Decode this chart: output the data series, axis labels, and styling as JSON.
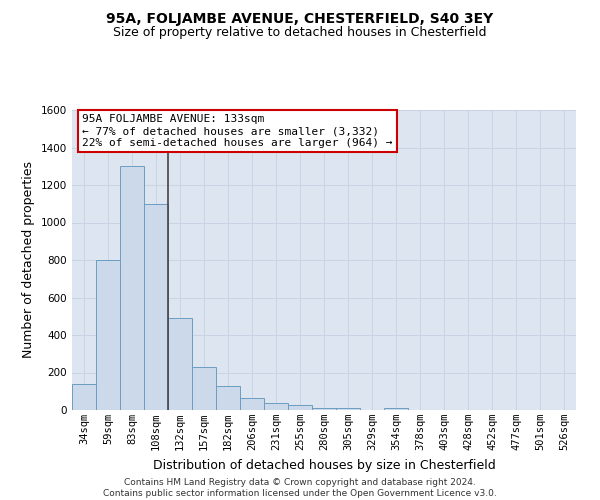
{
  "title": "95A, FOLJAMBE AVENUE, CHESTERFIELD, S40 3EY",
  "subtitle": "Size of property relative to detached houses in Chesterfield",
  "xlabel": "Distribution of detached houses by size in Chesterfield",
  "ylabel": "Number of detached properties",
  "footer_line1": "Contains HM Land Registry data © Crown copyright and database right 2024.",
  "footer_line2": "Contains public sector information licensed under the Open Government Licence v3.0.",
  "categories": [
    "34sqm",
    "59sqm",
    "83sqm",
    "108sqm",
    "132sqm",
    "157sqm",
    "182sqm",
    "206sqm",
    "231sqm",
    "255sqm",
    "280sqm",
    "305sqm",
    "329sqm",
    "354sqm",
    "378sqm",
    "403sqm",
    "428sqm",
    "452sqm",
    "477sqm",
    "501sqm",
    "526sqm"
  ],
  "values": [
    140,
    800,
    1300,
    1100,
    490,
    230,
    130,
    65,
    35,
    25,
    10,
    10,
    0,
    10,
    0,
    0,
    0,
    0,
    0,
    0,
    0
  ],
  "bar_color": "#ccd9ea",
  "bar_edge_color": "#6b9dc2",
  "annotation_text_line1": "95A FOLJAMBE AVENUE: 133sqm",
  "annotation_text_line2": "← 77% of detached houses are smaller (3,332)",
  "annotation_text_line3": "22% of semi-detached houses are larger (964) →",
  "annotation_box_facecolor": "#ffffff",
  "annotation_box_edgecolor": "#cc0000",
  "vline_color": "#444444",
  "vline_x": 3.5,
  "ylim": [
    0,
    1600
  ],
  "yticks": [
    0,
    200,
    400,
    600,
    800,
    1000,
    1200,
    1400,
    1600
  ],
  "grid_color": "#c8d4e4",
  "bg_color": "#dde6f0",
  "title_fontsize": 10,
  "subtitle_fontsize": 9,
  "tick_fontsize": 7.5,
  "label_fontsize": 9,
  "annotation_fontsize": 8
}
